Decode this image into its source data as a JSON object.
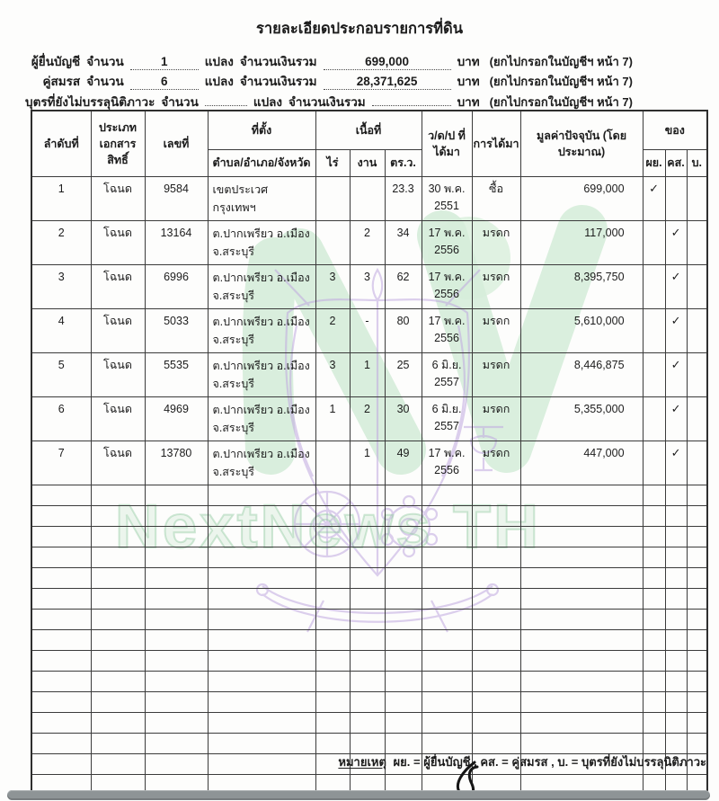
{
  "doc": {
    "title": "รายละเอียดประกอบรายการที่ดิน"
  },
  "summary": {
    "rows": [
      {
        "label": "ผู้ยื่นบัญชี",
        "count_label": "จำนวน",
        "count": "1",
        "unit": "แปลง",
        "amount_label": "จำนวนเงินรวม",
        "amount": "699,000",
        "currency": "บาท",
        "note": "(ยกไปกรอกในบัญชีฯ หน้า 7)"
      },
      {
        "label": "คู่สมรส",
        "count_label": "จำนวน",
        "count": "6",
        "unit": "แปลง",
        "amount_label": "จำนวนเงินรวม",
        "amount": "28,371,625",
        "currency": "บาท",
        "note": "(ยกไปกรอกในบัญชีฯ หน้า 7)"
      },
      {
        "label": "บุตรที่ยังไม่บรรลุนิติภาวะ",
        "count_label": "จำนวน",
        "count": "",
        "unit": "แปลง",
        "amount_label": "จำนวนเงินรวม",
        "amount": "",
        "currency": "บาท",
        "note": "(ยกไปกรอกในบัญชีฯ หน้า 7)"
      }
    ]
  },
  "table": {
    "headers": {
      "no": "ลำดับ​ที่",
      "doc_type": "ประเภท​เอกสาร​สิทธิ์",
      "number": "เลขที่",
      "location_group": "ที่ตั้ง",
      "location_sub": "ตำบล/อำเภอ/จังหวัด",
      "area_group": "เนื้อที่",
      "rai": "ไร่",
      "ngan": "งาน",
      "wa": "ตร.ว.",
      "date": "ว/ด/ป ที่ได้มา",
      "acquisition": "การได้มา",
      "value": "มูลค่าปัจจุบัน (โดยประมาณ)",
      "owner_group": "ของ",
      "owner_py": "ผย.",
      "owner_ks": "คส.",
      "owner_b": "บ."
    },
    "rows": [
      {
        "no": "1",
        "doc_type": "โฉนด",
        "number": "9584",
        "location": "เขตประเวศ กรุงเทพฯ",
        "rai": "",
        "ngan": "",
        "wa": "23.3",
        "date1": "30 พ.ค.",
        "date2": "2551",
        "acquisition": "ซื้อ",
        "value": "699,000",
        "py": "✓",
        "ks": "",
        "b": ""
      },
      {
        "no": "2",
        "doc_type": "โฉนด",
        "number": "13164",
        "location": "ต.ปากเพรียว อ.เมือง จ.สระบุรี",
        "rai": "",
        "ngan": "2",
        "wa": "34",
        "date1": "17 พ.ค.",
        "date2": "2556",
        "acquisition": "มรดก",
        "value": "117,000",
        "py": "",
        "ks": "✓",
        "b": ""
      },
      {
        "no": "3",
        "doc_type": "โฉนด",
        "number": "6996",
        "location": "ต.ปากเพรียว อ.เมือง จ.สระบุรี",
        "rai": "3",
        "ngan": "3",
        "wa": "62",
        "date1": "17 พ.ค.",
        "date2": "2556",
        "acquisition": "มรดก",
        "value": "8,395,750",
        "py": "",
        "ks": "✓",
        "b": ""
      },
      {
        "no": "4",
        "doc_type": "โฉนด",
        "number": "5033",
        "location": "ต.ปากเพรียว อ.เมือง จ.สระบุรี",
        "rai": "2",
        "ngan": "-",
        "wa": "80",
        "date1": "17 พ.ค.",
        "date2": "2556",
        "acquisition": "มรดก",
        "value": "5,610,000",
        "py": "",
        "ks": "✓",
        "b": ""
      },
      {
        "no": "5",
        "doc_type": "โฉนด",
        "number": "5535",
        "location": "ต.ปากเพรียว อ.เมือง จ.สระบุรี",
        "rai": "3",
        "ngan": "1",
        "wa": "25",
        "date1": "6 มิ.ย.",
        "date2": "2557",
        "acquisition": "มรดก",
        "value": "8,446,875",
        "py": "",
        "ks": "✓",
        "b": ""
      },
      {
        "no": "6",
        "doc_type": "โฉนด",
        "number": "4969",
        "location": "ต.ปากเพรียว อ.เมือง จ.สระบุรี",
        "rai": "1",
        "ngan": "2",
        "wa": "30",
        "date1": "6 มิ.ย.",
        "date2": "2557",
        "acquisition": "มรดก",
        "value": "5,355,000",
        "py": "",
        "ks": "✓",
        "b": ""
      },
      {
        "no": "7",
        "doc_type": "โฉนด",
        "number": "13780",
        "location": "ต.ปากเพรียว อ.เมือง จ.สระบุรี",
        "rai": "",
        "ngan": "1",
        "wa": "49",
        "date1": "17 พ.ค.",
        "date2": "2556",
        "acquisition": "มรดก",
        "value": "447,000",
        "py": "",
        "ks": "✓",
        "b": ""
      }
    ],
    "empty_row_count": 15
  },
  "footnote": {
    "prefix": "หมายเหตุ",
    "text": "ผย. = ผู้ยื่นบัญชี , คส. = คู่สมรส , บ. = บุตรที่ยังไม่บรรลุนิติภาวะ"
  },
  "watermark": {
    "text": "NextNews TH",
    "green": "#d6edda",
    "purple": "#c0a9e0"
  }
}
